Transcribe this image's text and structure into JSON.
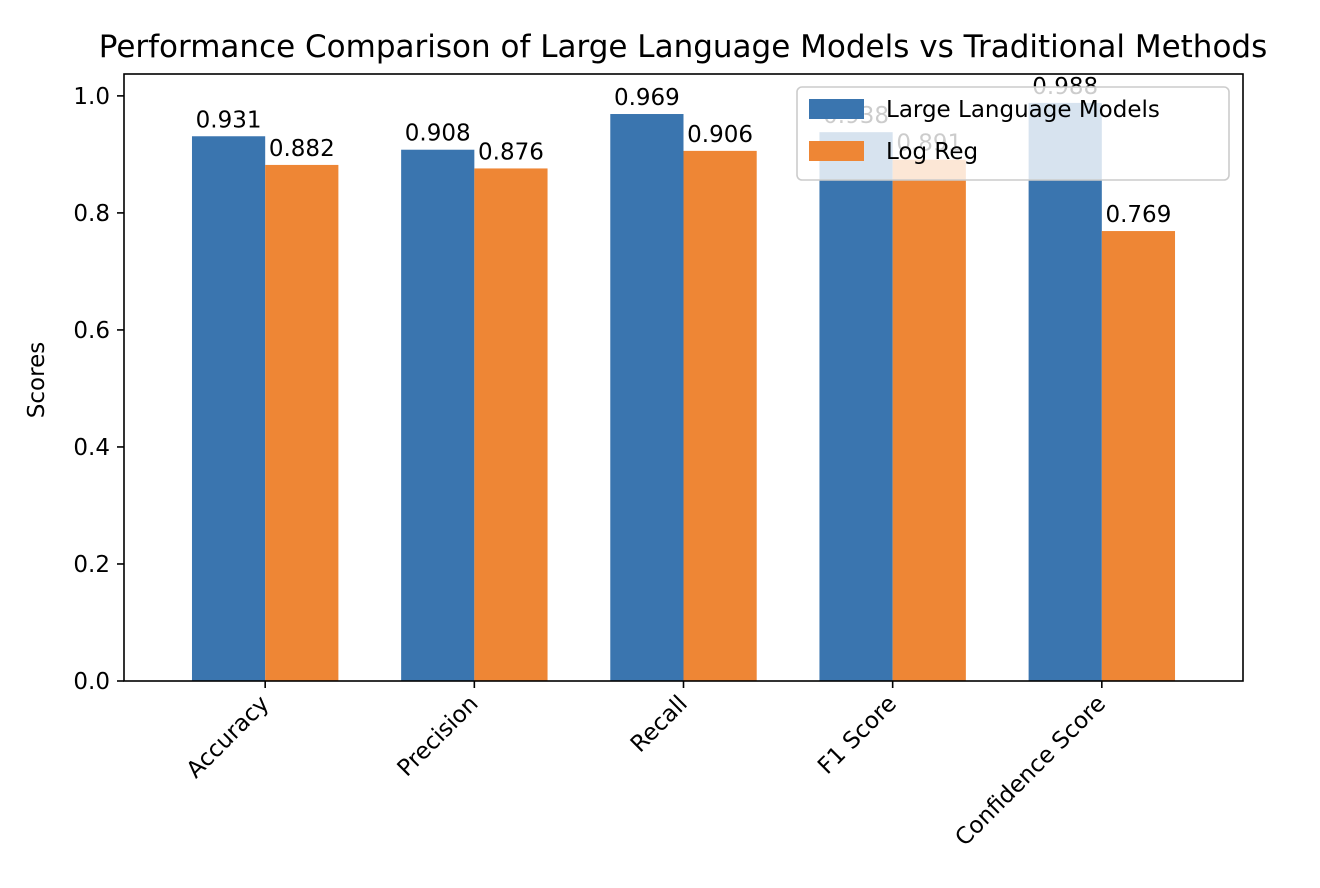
{
  "chart_data": {
    "type": "bar",
    "title": "Performance Comparison of Large Language Models vs Traditional Methods",
    "xlabel": "",
    "ylabel": "Scores",
    "categories": [
      "Accuracy",
      "Precision",
      "Recall",
      "F1 Score",
      "Confidence Score"
    ],
    "series": [
      {
        "name": "Large Language Models",
        "color": "#3a75af",
        "values": [
          0.931,
          0.908,
          0.969,
          0.938,
          0.988
        ],
        "labels": [
          "0.931",
          "0.908",
          "0.969",
          "0.938",
          "0.988"
        ]
      },
      {
        "name": "Log Reg",
        "color": "#ee8635",
        "values": [
          0.882,
          0.876,
          0.906,
          0.891,
          0.769
        ],
        "labels": [
          "0.882",
          "0.876",
          "0.906",
          "0.891",
          "0.769"
        ]
      }
    ],
    "ylim": [
      0,
      1.0374
    ],
    "yticks": [
      0.0,
      0.2,
      0.4,
      0.6,
      0.8,
      1.0
    ],
    "ytick_labels": [
      "0.0",
      "0.2",
      "0.4",
      "0.6",
      "0.8",
      "1.0"
    ],
    "grid": false,
    "legend_position": "top-right",
    "xtick_rotation": 45
  }
}
